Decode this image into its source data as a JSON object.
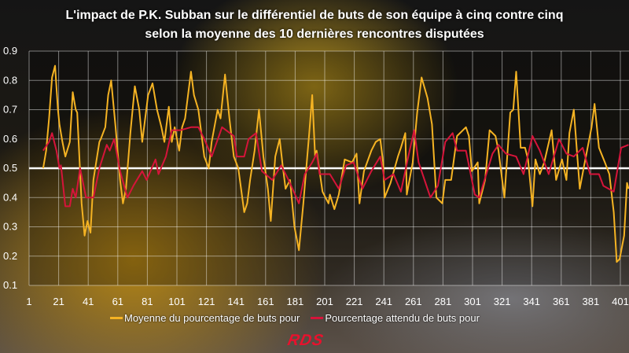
{
  "title_line1": "L'impact de P.K. Subban sur le différentiel de buts de son équipe à cinq contre cinq",
  "title_line2": "selon la moyenne des 10 dernières rencontres disputées",
  "logo": "RDS",
  "chart_data": {
    "type": "line",
    "title": "L'impact de P.K. Subban sur le différentiel de buts de son équipe à cinq contre cinq selon la moyenne des 10 dernières rencontres disputées",
    "xlabel": "",
    "ylabel": "",
    "xlim": [
      1,
      406
    ],
    "ylim": [
      0.1,
      0.9
    ],
    "xticks": [
      "1",
      "21",
      "41",
      "61",
      "81",
      "101",
      "121",
      "141",
      "161",
      "181",
      "201",
      "221",
      "241",
      "261",
      "281",
      "301",
      "321",
      "341",
      "361",
      "381",
      "401"
    ],
    "yticks": [
      "0.1",
      "0.2",
      "0.3",
      "0.4",
      "0.5",
      "0.6",
      "0.7",
      "0.8",
      "0.9"
    ],
    "grid": true,
    "reference_line": 0.5,
    "legend_position": "bottom",
    "series": [
      {
        "name": "Moyenne du pourcentage de buts pour",
        "color": "#f5b323",
        "points": [
          [
            10,
            0.5
          ],
          [
            12,
            0.56
          ],
          [
            14,
            0.67
          ],
          [
            16,
            0.81
          ],
          [
            18,
            0.85
          ],
          [
            20,
            0.7
          ],
          [
            21,
            0.65
          ],
          [
            23,
            0.59
          ],
          [
            25,
            0.54
          ],
          [
            28,
            0.59
          ],
          [
            29,
            0.67
          ],
          [
            30,
            0.76
          ],
          [
            32,
            0.7
          ],
          [
            33,
            0.69
          ],
          [
            36,
            0.38
          ],
          [
            38,
            0.27
          ],
          [
            40,
            0.32
          ],
          [
            42,
            0.28
          ],
          [
            44,
            0.46
          ],
          [
            48,
            0.59
          ],
          [
            49,
            0.6
          ],
          [
            52,
            0.64
          ],
          [
            54,
            0.75
          ],
          [
            56,
            0.8
          ],
          [
            59,
            0.64
          ],
          [
            62,
            0.46
          ],
          [
            64,
            0.38
          ],
          [
            66,
            0.43
          ],
          [
            69,
            0.62
          ],
          [
            72,
            0.78
          ],
          [
            75,
            0.7
          ],
          [
            77,
            0.59
          ],
          [
            81,
            0.75
          ],
          [
            84,
            0.79
          ],
          [
            87,
            0.7
          ],
          [
            90,
            0.64
          ],
          [
            92,
            0.59
          ],
          [
            95,
            0.71
          ],
          [
            97,
            0.59
          ],
          [
            99,
            0.64
          ],
          [
            102,
            0.56
          ],
          [
            104,
            0.64
          ],
          [
            106,
            0.67
          ],
          [
            110,
            0.83
          ],
          [
            112,
            0.75
          ],
          [
            115,
            0.7
          ],
          [
            119,
            0.54
          ],
          [
            122,
            0.5
          ],
          [
            124,
            0.59
          ],
          [
            128,
            0.7
          ],
          [
            130,
            0.67
          ],
          [
            133,
            0.82
          ],
          [
            136,
            0.67
          ],
          [
            139,
            0.54
          ],
          [
            142,
            0.5
          ],
          [
            146,
            0.35
          ],
          [
            148,
            0.38
          ],
          [
            150,
            0.46
          ],
          [
            153,
            0.56
          ],
          [
            156,
            0.7
          ],
          [
            159,
            0.54
          ],
          [
            162,
            0.43
          ],
          [
            164,
            0.32
          ],
          [
            167,
            0.54
          ],
          [
            170,
            0.6
          ],
          [
            172,
            0.51
          ],
          [
            174,
            0.43
          ],
          [
            177,
            0.46
          ],
          [
            180,
            0.3
          ],
          [
            183,
            0.22
          ],
          [
            186,
            0.38
          ],
          [
            190,
            0.62
          ],
          [
            192,
            0.75
          ],
          [
            194,
            0.54
          ],
          [
            195,
            0.56
          ],
          [
            199,
            0.42
          ],
          [
            203,
            0.38
          ],
          [
            204,
            0.41
          ],
          [
            207,
            0.36
          ],
          [
            210,
            0.41
          ],
          [
            214,
            0.53
          ],
          [
            219,
            0.52
          ],
          [
            222,
            0.55
          ],
          [
            224,
            0.38
          ],
          [
            227,
            0.49
          ],
          [
            232,
            0.56
          ],
          [
            235,
            0.59
          ],
          [
            238,
            0.6
          ],
          [
            240,
            0.52
          ],
          [
            241,
            0.4
          ],
          [
            245,
            0.45
          ],
          [
            250,
            0.54
          ],
          [
            252,
            0.57
          ],
          [
            255,
            0.62
          ],
          [
            256,
            0.41
          ],
          [
            260,
            0.52
          ],
          [
            263,
            0.69
          ],
          [
            266,
            0.81
          ],
          [
            270,
            0.74
          ],
          [
            273,
            0.65
          ],
          [
            276,
            0.4
          ],
          [
            280,
            0.38
          ],
          [
            282,
            0.46
          ],
          [
            286,
            0.46
          ],
          [
            290,
            0.61
          ],
          [
            296,
            0.64
          ],
          [
            298,
            0.61
          ],
          [
            300,
            0.49
          ],
          [
            304,
            0.52
          ],
          [
            305,
            0.38
          ],
          [
            309,
            0.46
          ],
          [
            312,
            0.63
          ],
          [
            316,
            0.61
          ],
          [
            318,
            0.56
          ],
          [
            322,
            0.4
          ],
          [
            326,
            0.69
          ],
          [
            328,
            0.7
          ],
          [
            330,
            0.83
          ],
          [
            333,
            0.57
          ],
          [
            336,
            0.57
          ],
          [
            338,
            0.53
          ],
          [
            341,
            0.37
          ],
          [
            343,
            0.53
          ],
          [
            346,
            0.48
          ],
          [
            349,
            0.52
          ],
          [
            354,
            0.63
          ],
          [
            357,
            0.46
          ],
          [
            361,
            0.53
          ],
          [
            364,
            0.46
          ],
          [
            366,
            0.62
          ],
          [
            369,
            0.7
          ],
          [
            373,
            0.43
          ],
          [
            376,
            0.51
          ],
          [
            381,
            0.64
          ],
          [
            383,
            0.72
          ],
          [
            386,
            0.57
          ],
          [
            390,
            0.52
          ],
          [
            393,
            0.48
          ],
          [
            396,
            0.35
          ],
          [
            398,
            0.18
          ],
          [
            400,
            0.19
          ],
          [
            403,
            0.27
          ],
          [
            405,
            0.45
          ],
          [
            406,
            0.43
          ]
        ]
      },
      {
        "name": "Pourcentage attendu de buts pour",
        "color": "#d6143a",
        "points": [
          [
            10,
            0.56
          ],
          [
            14,
            0.59
          ],
          [
            16,
            0.62
          ],
          [
            19,
            0.56
          ],
          [
            21,
            0.5
          ],
          [
            22,
            0.51
          ],
          [
            25,
            0.37
          ],
          [
            28,
            0.37
          ],
          [
            30,
            0.43
          ],
          [
            32,
            0.4
          ],
          [
            35,
            0.5
          ],
          [
            39,
            0.4
          ],
          [
            44,
            0.4
          ],
          [
            48,
            0.5
          ],
          [
            53,
            0.58
          ],
          [
            55,
            0.56
          ],
          [
            58,
            0.6
          ],
          [
            62,
            0.49
          ],
          [
            67,
            0.4
          ],
          [
            71,
            0.44
          ],
          [
            77,
            0.49
          ],
          [
            80,
            0.46
          ],
          [
            86,
            0.53
          ],
          [
            88,
            0.48
          ],
          [
            93,
            0.54
          ],
          [
            97,
            0.63
          ],
          [
            103,
            0.63
          ],
          [
            110,
            0.64
          ],
          [
            115,
            0.64
          ],
          [
            119,
            0.6
          ],
          [
            124,
            0.54
          ],
          [
            131,
            0.64
          ],
          [
            139,
            0.61
          ],
          [
            141,
            0.54
          ],
          [
            146,
            0.54
          ],
          [
            149,
            0.6
          ],
          [
            154,
            0.62
          ],
          [
            158,
            0.49
          ],
          [
            165,
            0.46
          ],
          [
            171,
            0.51
          ],
          [
            176,
            0.46
          ],
          [
            183,
            0.38
          ],
          [
            187,
            0.48
          ],
          [
            192,
            0.52
          ],
          [
            195,
            0.55
          ],
          [
            197,
            0.48
          ],
          [
            204,
            0.48
          ],
          [
            210,
            0.43
          ],
          [
            215,
            0.51
          ],
          [
            220,
            0.52
          ],
          [
            226,
            0.43
          ],
          [
            232,
            0.49
          ],
          [
            238,
            0.54
          ],
          [
            241,
            0.46
          ],
          [
            247,
            0.48
          ],
          [
            252,
            0.42
          ],
          [
            257,
            0.54
          ],
          [
            261,
            0.63
          ],
          [
            264,
            0.52
          ],
          [
            272,
            0.4
          ],
          [
            277,
            0.44
          ],
          [
            282,
            0.59
          ],
          [
            287,
            0.62
          ],
          [
            290,
            0.56
          ],
          [
            296,
            0.56
          ],
          [
            302,
            0.41
          ],
          [
            305,
            0.4
          ],
          [
            314,
            0.55
          ],
          [
            318,
            0.58
          ],
          [
            323,
            0.55
          ],
          [
            330,
            0.54
          ],
          [
            335,
            0.48
          ],
          [
            341,
            0.61
          ],
          [
            346,
            0.56
          ],
          [
            352,
            0.48
          ],
          [
            359,
            0.6
          ],
          [
            364,
            0.55
          ],
          [
            369,
            0.54
          ],
          [
            375,
            0.57
          ],
          [
            380,
            0.48
          ],
          [
            386,
            0.48
          ],
          [
            389,
            0.44
          ],
          [
            396,
            0.42
          ],
          [
            401,
            0.57
          ],
          [
            406,
            0.58
          ]
        ]
      }
    ]
  }
}
